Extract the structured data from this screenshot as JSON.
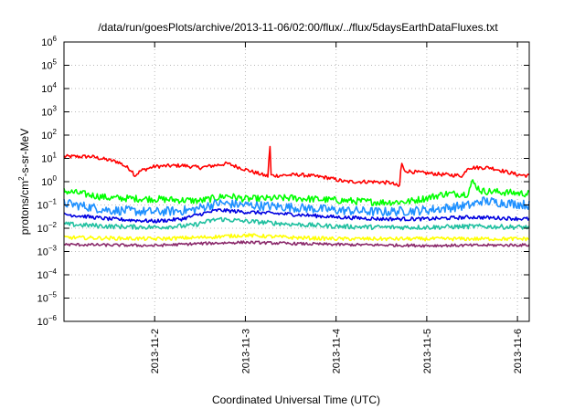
{
  "chart_data": {
    "type": "line",
    "title": "/data/run/goesPlots/archive/2013-11-06/02:00/flux/../flux/5daysEarthDataFluxes.txt",
    "xlabel": "Coordinated Universal Time (UTC)",
    "ylabel": {
      "prefix": "protons/cm",
      "sup": "2",
      "suffix": "-s-sr-MeV"
    },
    "yscale": "log",
    "ylim_exp": [
      -6,
      6
    ],
    "y_tick_exponents": [
      -6,
      -5,
      -4,
      -3,
      -2,
      -1,
      0,
      1,
      2,
      3,
      4,
      5,
      6
    ],
    "y_tick_base": "10",
    "xlim_days": [
      0,
      5.13
    ],
    "x_ticks": [
      {
        "label": "2013-11-2",
        "day": 1
      },
      {
        "label": "2013-11-3",
        "day": 2
      },
      {
        "label": "2013-11-4",
        "day": 3
      },
      {
        "label": "2013-11-5",
        "day": 4
      },
      {
        "label": "2013-11-6",
        "day": 5
      }
    ],
    "grid": true,
    "legend": "none",
    "series": [
      {
        "color": "#ff0000",
        "noise": 0.08,
        "points": [
          [
            0,
            12
          ],
          [
            0.3,
            12
          ],
          [
            0.6,
            7
          ],
          [
            0.75,
            3
          ],
          [
            0.78,
            1.8
          ],
          [
            0.85,
            3
          ],
          [
            1.0,
            4.5
          ],
          [
            1.3,
            5
          ],
          [
            1.5,
            4
          ],
          [
            1.8,
            6
          ],
          [
            2.1,
            2.5
          ],
          [
            2.25,
            1.7
          ],
          [
            2.27,
            55
          ],
          [
            2.28,
            2
          ],
          [
            2.3,
            1.8
          ],
          [
            2.6,
            2
          ],
          [
            2.9,
            1.5
          ],
          [
            3.1,
            1
          ],
          [
            3.4,
            1
          ],
          [
            3.6,
            0.9
          ],
          [
            3.7,
            0.6
          ],
          [
            3.72,
            7
          ],
          [
            3.75,
            3
          ],
          [
            3.9,
            2.5
          ],
          [
            4.2,
            2
          ],
          [
            4.4,
            1.8
          ],
          [
            4.45,
            4
          ],
          [
            4.7,
            4
          ],
          [
            5.0,
            2
          ],
          [
            5.13,
            1.8
          ]
        ]
      },
      {
        "color": "#00ff00",
        "noise": 0.15,
        "points": [
          [
            0,
            0.4
          ],
          [
            0.5,
            0.2
          ],
          [
            1.0,
            0.18
          ],
          [
            1.5,
            0.15
          ],
          [
            1.8,
            0.25
          ],
          [
            2.0,
            0.18
          ],
          [
            2.5,
            0.2
          ],
          [
            3.0,
            0.16
          ],
          [
            3.5,
            0.13
          ],
          [
            3.8,
            0.14
          ],
          [
            4.0,
            0.2
          ],
          [
            4.2,
            0.3
          ],
          [
            4.45,
            0.3
          ],
          [
            4.5,
            1.0
          ],
          [
            4.6,
            0.4
          ],
          [
            5.13,
            0.3
          ]
        ]
      },
      {
        "color": "#1e90ff",
        "noise": 0.2,
        "points": [
          [
            0,
            0.12
          ],
          [
            0.5,
            0.06
          ],
          [
            1.0,
            0.05
          ],
          [
            1.4,
            0.06
          ],
          [
            1.7,
            0.12
          ],
          [
            2.0,
            0.1
          ],
          [
            2.5,
            0.08
          ],
          [
            3.0,
            0.06
          ],
          [
            3.5,
            0.05
          ],
          [
            4.0,
            0.06
          ],
          [
            4.5,
            0.1
          ],
          [
            4.6,
            0.15
          ],
          [
            5.13,
            0.1
          ]
        ]
      },
      {
        "color": "#0000e0",
        "noise": 0.08,
        "points": [
          [
            0,
            0.04
          ],
          [
            0.5,
            0.025
          ],
          [
            1.0,
            0.02
          ],
          [
            1.3,
            0.025
          ],
          [
            1.5,
            0.04
          ],
          [
            1.7,
            0.06
          ],
          [
            2.0,
            0.05
          ],
          [
            2.5,
            0.04
          ],
          [
            3.0,
            0.03
          ],
          [
            3.5,
            0.025
          ],
          [
            4.0,
            0.025
          ],
          [
            4.5,
            0.03
          ],
          [
            5.13,
            0.025
          ]
        ]
      },
      {
        "color": "#20c0a0",
        "noise": 0.1,
        "points": [
          [
            0,
            0.015
          ],
          [
            0.5,
            0.012
          ],
          [
            1.0,
            0.011
          ],
          [
            1.4,
            0.013
          ],
          [
            1.7,
            0.025
          ],
          [
            2.0,
            0.02
          ],
          [
            2.5,
            0.015
          ],
          [
            3.0,
            0.012
          ],
          [
            3.5,
            0.011
          ],
          [
            4.0,
            0.011
          ],
          [
            4.5,
            0.012
          ],
          [
            5.13,
            0.011
          ]
        ]
      },
      {
        "color": "#ffff00",
        "noise": 0.08,
        "points": [
          [
            0,
            0.004
          ],
          [
            1.0,
            0.0035
          ],
          [
            1.5,
            0.004
          ],
          [
            2.0,
            0.005
          ],
          [
            2.5,
            0.004
          ],
          [
            3.0,
            0.0035
          ],
          [
            4.0,
            0.0035
          ],
          [
            5.13,
            0.0035
          ]
        ]
      },
      {
        "color": "#8b2a6b",
        "noise": 0.06,
        "points": [
          [
            0,
            0.002
          ],
          [
            1.0,
            0.0018
          ],
          [
            1.5,
            0.0022
          ],
          [
            2.0,
            0.0025
          ],
          [
            2.5,
            0.0022
          ],
          [
            3.0,
            0.002
          ],
          [
            4.0,
            0.0018
          ],
          [
            5.13,
            0.0019
          ]
        ]
      }
    ]
  }
}
